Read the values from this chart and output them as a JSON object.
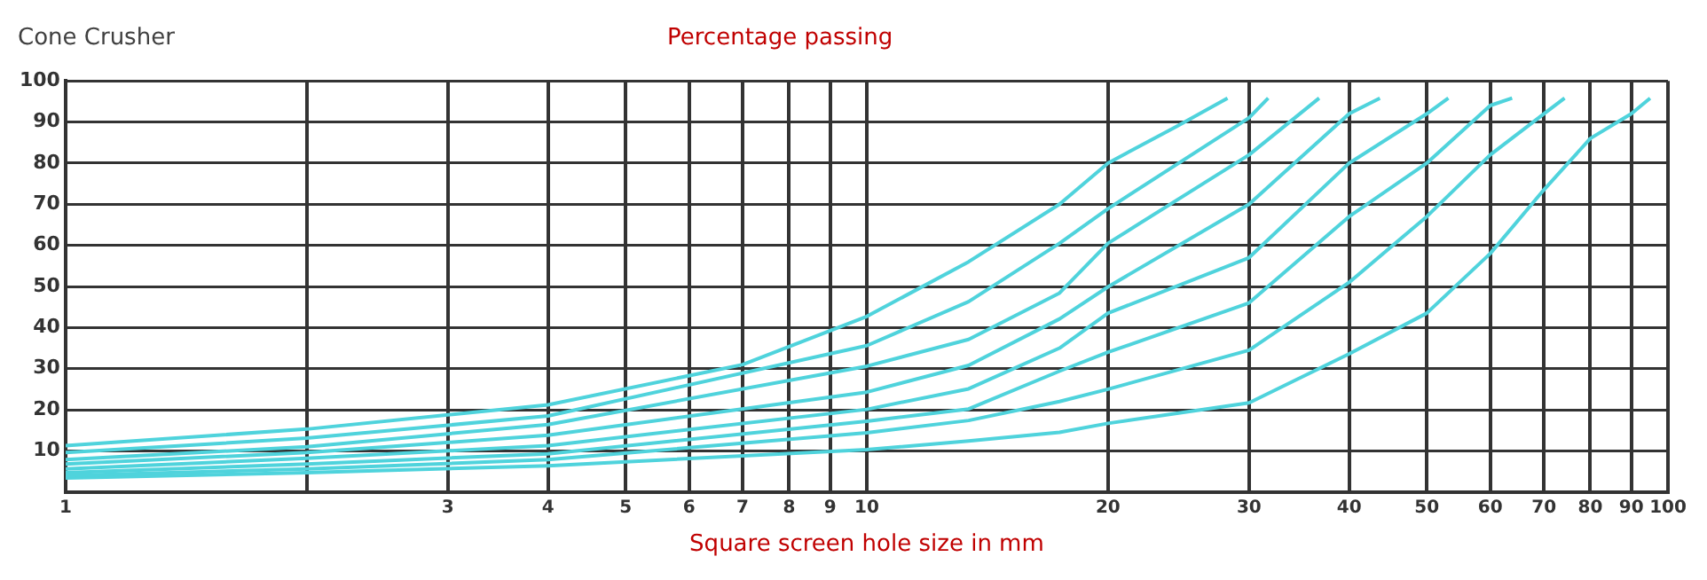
{
  "chart_data": {
    "type": "line",
    "title": "Cone Crusher",
    "ylabel": "Percentage passing",
    "xlabel": "Square screen hole size in mm",
    "log": "x",
    "grid": true,
    "marker": "none",
    "line_style": "solid",
    "xlim": [
      1,
      100
    ],
    "xticks": [
      1,
      {
        "value": 2,
        "label": null
      },
      3,
      4,
      5,
      6,
      7,
      8,
      9,
      10,
      20,
      30,
      40,
      50,
      60,
      70,
      80,
      90,
      100
    ],
    "ylim": [
      0,
      100
    ],
    "yticks": [
      10,
      20,
      30,
      40,
      50,
      60,
      70,
      80,
      90,
      100
    ],
    "series": [
      {
        "color": "#4fd3dc",
        "x": [
          1,
          2,
          4,
          7,
          10,
          13.4,
          17.4,
          20,
          24.4,
          28.2
        ],
        "values": [
          11.3,
          15.3,
          21.2,
          31,
          42.7,
          56,
          70,
          80,
          89,
          95.8
        ]
      },
      {
        "color": "#4fd3dc",
        "x": [
          1,
          2,
          4,
          10,
          13.4,
          17.4,
          20,
          30,
          31.7
        ],
        "values": [
          9.6,
          13.1,
          18.5,
          35.6,
          46.3,
          60.5,
          68.9,
          91,
          95.8
        ]
      },
      {
        "color": "#4fd3dc",
        "x": [
          1,
          2,
          4,
          10,
          13.4,
          17.4,
          20,
          30,
          36.7
        ],
        "values": [
          7.9,
          11,
          16.4,
          30.6,
          37.1,
          48.4,
          60.5,
          82,
          95.8
        ]
      },
      {
        "color": "#4fd3dc",
        "x": [
          1,
          2,
          4,
          10,
          13.4,
          17.4,
          20,
          30,
          40,
          43.7
        ],
        "values": [
          6.8,
          9.6,
          13.8,
          24.3,
          30.8,
          42.1,
          49.9,
          70,
          92,
          95.8
        ]
      },
      {
        "color": "#4fd3dc",
        "x": [
          1,
          2,
          4,
          10,
          13.4,
          17.4,
          20,
          30,
          40,
          50,
          53.2
        ],
        "values": [
          5.6,
          8.2,
          11.3,
          20.1,
          25.1,
          35,
          43.5,
          57,
          80,
          92,
          95.8
        ]
      },
      {
        "color": "#4fd3dc",
        "x": [
          1,
          2,
          4,
          10,
          13.4,
          17.4,
          20,
          30,
          40,
          50,
          60,
          63.9
        ],
        "values": [
          4.7,
          6.8,
          9.3,
          17.2,
          20.2,
          29.4,
          34,
          46,
          67,
          80,
          94,
          95.8
        ]
      },
      {
        "color": "#4fd3dc",
        "x": [
          1,
          2,
          4,
          10,
          13.4,
          17.4,
          20,
          30,
          40,
          50,
          60,
          70,
          74.3
        ],
        "values": [
          4,
          5.6,
          7.9,
          14.4,
          17.4,
          22,
          25,
          34.5,
          51,
          67,
          82,
          92,
          95.8
        ]
      },
      {
        "color": "#4fd3dc",
        "x": [
          1,
          2,
          4,
          10,
          13.4,
          17.4,
          20,
          30,
          40,
          50,
          60,
          70,
          80,
          90,
          95
        ],
        "values": [
          3.4,
          4.7,
          6.4,
          10.3,
          12.4,
          14.5,
          16.7,
          21.7,
          33.6,
          43.5,
          58,
          73.5,
          86,
          92,
          95.8
        ]
      }
    ]
  }
}
